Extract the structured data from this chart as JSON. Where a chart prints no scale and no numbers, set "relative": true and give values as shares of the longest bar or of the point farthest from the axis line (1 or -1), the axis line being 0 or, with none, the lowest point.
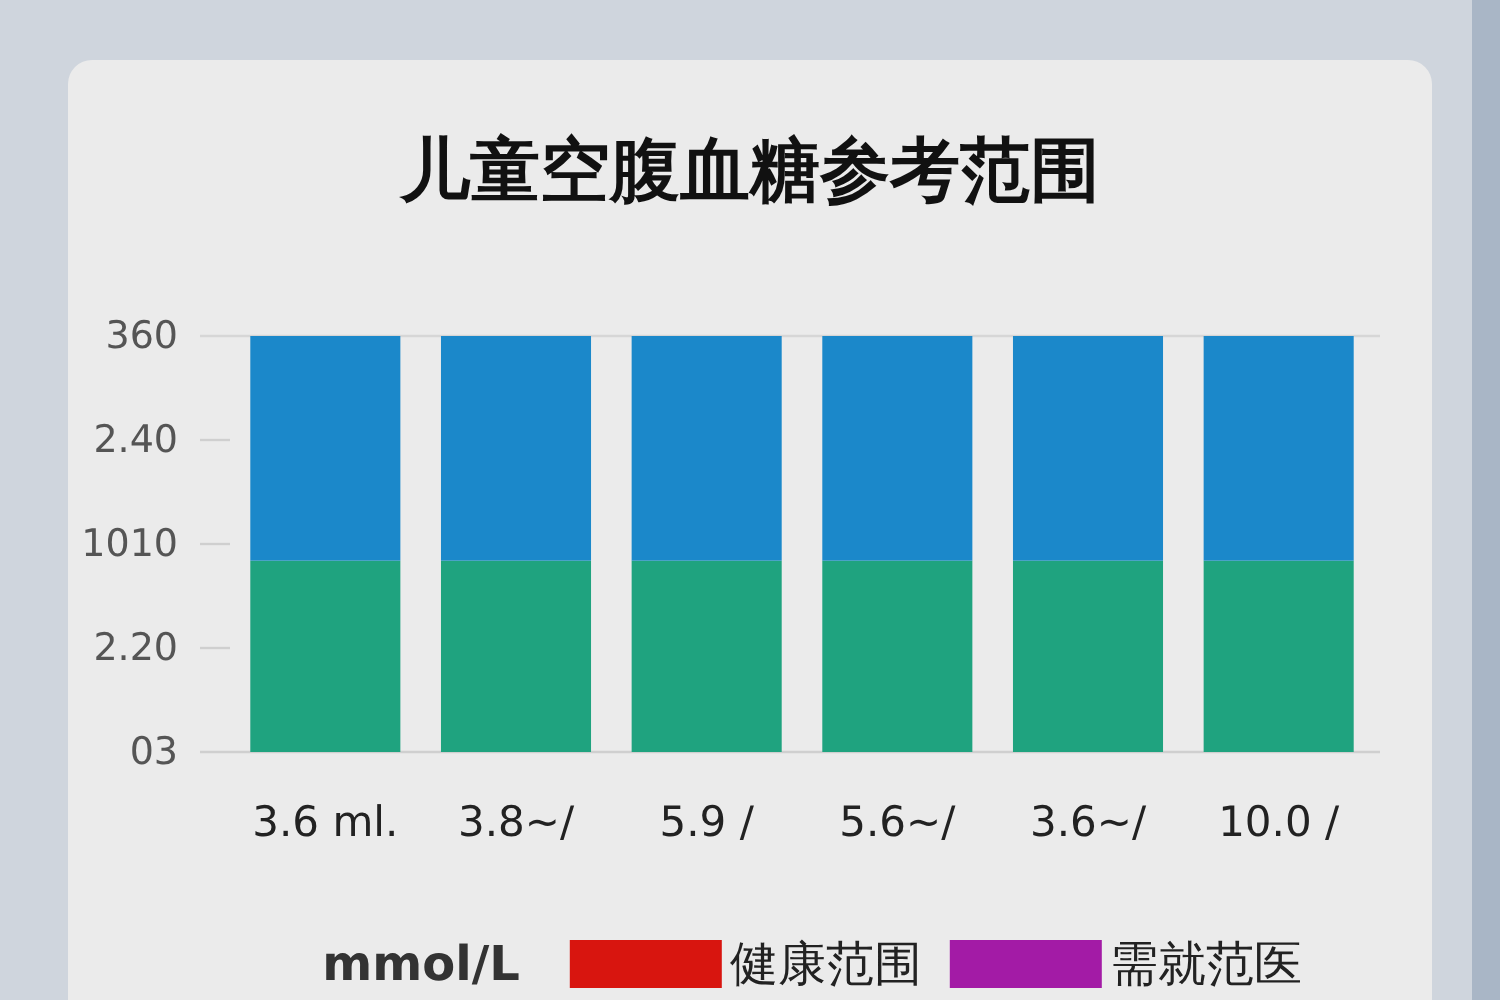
{
  "chart_data": {
    "type": "bar",
    "title": "儿童空腹血糖参考范围",
    "categories": [
      "3.6 ml.",
      "3.8~/",
      "5.9 /",
      "5.6~/",
      "3.6~/",
      "10.0 /"
    ],
    "stacked": true,
    "relative": true,
    "series": [
      {
        "color": "#1fa37f",
        "values": [
          0.46,
          0.46,
          0.46,
          0.46,
          0.46,
          0.46
        ]
      },
      {
        "color": "#1b88ca",
        "values": [
          0.54,
          0.54,
          0.54,
          0.54,
          0.54,
          0.54
        ]
      },
      {
        "name": "健康范围",
        "color": "#d8150f",
        "values": [
          null,
          null,
          null,
          null,
          null,
          null
        ]
      },
      {
        "name": "需就范医",
        "color": "#a31ba6",
        "values": [
          null,
          null,
          null,
          null,
          null,
          null
        ]
      }
    ],
    "legend_title": "mmol/L",
    "legend": "bottom",
    "annotations": [
      "360",
      "2.40",
      "1010",
      "2.20",
      "03"
    ]
  }
}
